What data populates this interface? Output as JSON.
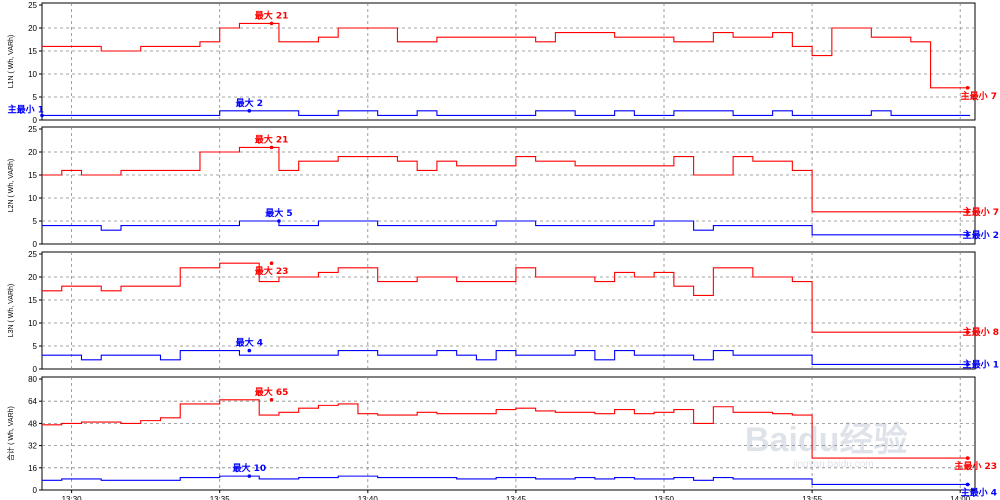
{
  "chart_data": [
    {
      "type": "line",
      "ylabel": "L1N ( Wh, VARh)",
      "ylim": [
        0,
        25
      ],
      "yticks": [
        0,
        5,
        10,
        15,
        20,
        25
      ],
      "series": [
        {
          "color": "#ff0000",
          "values": [
            16,
            16,
            16,
            15,
            15,
            16,
            16,
            16,
            17,
            20,
            21,
            21,
            17,
            17,
            18,
            20,
            20,
            20,
            17,
            17,
            18,
            18,
            18,
            18,
            18,
            17,
            19,
            19,
            19,
            18,
            18,
            18,
            17,
            17,
            19,
            18,
            18,
            19,
            16,
            14,
            20,
            20,
            18,
            18,
            17,
            7,
            7
          ]
        },
        {
          "color": "#0000ff",
          "values": [
            1,
            1,
            1,
            1,
            1,
            1,
            1,
            1,
            1,
            2,
            2,
            2,
            2,
            1,
            1,
            2,
            2,
            1,
            1,
            2,
            1,
            1,
            1,
            1,
            1,
            2,
            2,
            1,
            1,
            2,
            1,
            1,
            2,
            2,
            2,
            1,
            1,
            2,
            1,
            1,
            1,
            1,
            2,
            1,
            1,
            1,
            1
          ]
        }
      ],
      "annotations": [
        {
          "text": "最大 21",
          "x": "13:36:45",
          "y": 21,
          "color": "#ff0000",
          "anchor": "above"
        },
        {
          "text": "最大 2",
          "x": "13:36:00",
          "y": 2,
          "color": "#0000ff",
          "anchor": "above"
        },
        {
          "text": "主最小 1",
          "x": "13:29:00",
          "y": 1,
          "color": "#0000ff",
          "anchor": "left"
        },
        {
          "text": "主最小 7",
          "x": "14:00:15",
          "y": 7,
          "color": "#ff0000",
          "anchor": "below"
        }
      ]
    },
    {
      "type": "line",
      "ylabel": "L2N ( Wh, VARh)",
      "ylim": [
        0,
        25
      ],
      "yticks": [
        0,
        5,
        10,
        15,
        20,
        25
      ],
      "series": [
        {
          "color": "#ff0000",
          "values": [
            15,
            16,
            15,
            15,
            16,
            16,
            16,
            16,
            20,
            20,
            21,
            21,
            16,
            18,
            18,
            19,
            19,
            19,
            18,
            16,
            18,
            17,
            17,
            17,
            19,
            18,
            18,
            17,
            17,
            17,
            17,
            17,
            19,
            15,
            15,
            19,
            18,
            18,
            16,
            7,
            7,
            7,
            7,
            7,
            7,
            7,
            7
          ]
        },
        {
          "color": "#0000ff",
          "values": [
            4,
            4,
            4,
            3,
            4,
            4,
            4,
            4,
            4,
            4,
            5,
            5,
            4,
            4,
            5,
            5,
            5,
            4,
            4,
            4,
            4,
            4,
            4,
            5,
            5,
            4,
            4,
            4,
            4,
            4,
            4,
            5,
            5,
            3,
            4,
            4,
            4,
            4,
            4,
            2,
            2,
            2,
            2,
            2,
            2,
            2,
            2
          ]
        }
      ],
      "annotations": [
        {
          "text": "最大 21",
          "x": "13:36:45",
          "y": 21,
          "color": "#ff0000",
          "anchor": "above"
        },
        {
          "text": "最大 5",
          "x": "13:37:00",
          "y": 5,
          "color": "#0000ff",
          "anchor": "above"
        },
        {
          "text": "主最小 7",
          "x": "14:00:15",
          "y": 7,
          "color": "#ff0000",
          "anchor": "right"
        },
        {
          "text": "主最小 2",
          "x": "14:00:15",
          "y": 2,
          "color": "#0000ff",
          "anchor": "right"
        }
      ]
    },
    {
      "type": "line",
      "ylabel": "L3N ( Wh, VARh)",
      "ylim": [
        0,
        25
      ],
      "yticks": [
        0,
        5,
        10,
        15,
        20,
        25
      ],
      "series": [
        {
          "color": "#ff0000",
          "values": [
            17,
            18,
            18,
            17,
            18,
            18,
            18,
            22,
            22,
            23,
            23,
            19,
            20,
            20,
            21,
            22,
            22,
            19,
            19,
            20,
            20,
            19,
            19,
            19,
            22,
            20,
            20,
            20,
            19,
            21,
            20,
            21,
            18,
            16,
            22,
            22,
            20,
            20,
            19,
            8,
            8,
            8,
            8,
            8,
            8,
            8,
            8
          ]
        },
        {
          "color": "#0000ff",
          "values": [
            3,
            3,
            2,
            3,
            3,
            3,
            2,
            4,
            4,
            4,
            3,
            3,
            3,
            3,
            3,
            4,
            4,
            3,
            3,
            3,
            4,
            3,
            2,
            4,
            3,
            3,
            3,
            4,
            2,
            4,
            3,
            3,
            3,
            2,
            4,
            3,
            3,
            3,
            3,
            1,
            1,
            1,
            1,
            1,
            1,
            1,
            1
          ]
        }
      ],
      "annotations": [
        {
          "text": "最大 23",
          "x": "13:36:45",
          "y": 23,
          "color": "#ff0000",
          "anchor": "below"
        },
        {
          "text": "最大 4",
          "x": "13:36:00",
          "y": 4,
          "color": "#0000ff",
          "anchor": "above"
        },
        {
          "text": "主最小 8",
          "x": "14:00:15",
          "y": 8,
          "color": "#ff0000",
          "anchor": "right"
        },
        {
          "text": "主最小 1",
          "x": "14:00:15",
          "y": 1,
          "color": "#0000ff",
          "anchor": "right"
        }
      ]
    },
    {
      "type": "line",
      "ylabel": "合计 ( Wh, VARh)",
      "ylim": [
        0,
        80
      ],
      "yticks": [
        0,
        16,
        32,
        48,
        64,
        80
      ],
      "series": [
        {
          "color": "#ff0000",
          "values": [
            47,
            48,
            49,
            49,
            48,
            50,
            52,
            62,
            62,
            65,
            65,
            54,
            56,
            59,
            61,
            62,
            55,
            54,
            54,
            56,
            55,
            55,
            55,
            58,
            59,
            57,
            56,
            56,
            55,
            58,
            55,
            56,
            58,
            48,
            60,
            56,
            56,
            55,
            54,
            23,
            23,
            23,
            23,
            23,
            23,
            23,
            23
          ]
        },
        {
          "color": "#0000ff",
          "values": [
            7,
            8,
            8,
            7,
            7,
            7,
            7,
            9,
            9,
            10,
            10,
            8,
            8,
            9,
            9,
            10,
            10,
            9,
            9,
            9,
            9,
            8,
            8,
            9,
            9,
            8,
            8,
            9,
            8,
            9,
            8,
            8,
            9,
            7,
            9,
            8,
            8,
            8,
            8,
            4,
            4,
            4,
            4,
            4,
            4,
            4,
            4
          ]
        }
      ],
      "annotations": [
        {
          "text": "最大 65",
          "x": "13:36:45",
          "y": 65,
          "color": "#ff0000",
          "anchor": "above"
        },
        {
          "text": "最大 10",
          "x": "13:36:00",
          "y": 10,
          "color": "#0000ff",
          "anchor": "above"
        },
        {
          "text": "主最小 23",
          "x": "14:00:15",
          "y": 23,
          "color": "#ff0000",
          "anchor": "below"
        },
        {
          "text": "主最小 4",
          "x": "14:00:15",
          "y": 4,
          "color": "#0000ff",
          "anchor": "below"
        }
      ]
    }
  ],
  "x_axis": {
    "labels": [
      "13:30",
      "13:35",
      "13:40",
      "13:45",
      "13:50",
      "13:55",
      "14:00"
    ],
    "start": "13:29:00",
    "end": "14:00:30",
    "step_seconds": 40
  },
  "watermark": {
    "text": "Baidu经验",
    "sub": "jingyan.baidu.com"
  },
  "grid": true,
  "colors": {
    "max_series": "#ff0000",
    "min_series": "#0000ff",
    "grid": "#888888",
    "frame": "#000000"
  }
}
